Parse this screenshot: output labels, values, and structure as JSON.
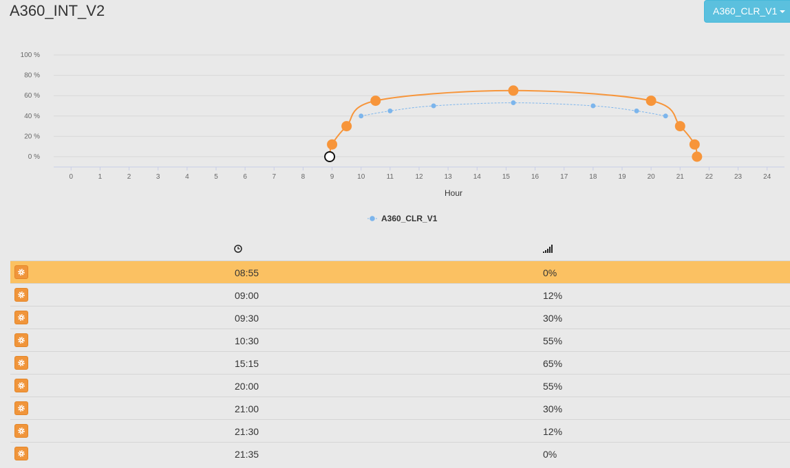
{
  "page": {
    "title": "A360_INT_V2"
  },
  "profile_select": {
    "label": "A360_CLR_V1",
    "icon": "caret-down-icon"
  },
  "chart_data": {
    "type": "line",
    "xlabel": "Hour",
    "x_ticks": [
      "0",
      "1",
      "2",
      "3",
      "4",
      "5",
      "6",
      "7",
      "8",
      "9",
      "10",
      "11",
      "12",
      "13",
      "14",
      "15",
      "16",
      "17",
      "18",
      "19",
      "20",
      "21",
      "22",
      "23",
      "24"
    ],
    "y_ticks": [
      "0 %",
      "20 %",
      "40 %",
      "60 %",
      "80 %",
      "100 %"
    ],
    "ylim": [
      0,
      100
    ],
    "xlim": [
      -0.6,
      24.6
    ],
    "grid": true,
    "legend_position": "bottom-center",
    "series": [
      {
        "name": "",
        "color": "#f7953a",
        "style": "solid",
        "points": [
          [
            9.0,
            12
          ],
          [
            9.5,
            30
          ],
          [
            10.5,
            55
          ],
          [
            15.25,
            65
          ],
          [
            20.0,
            55
          ],
          [
            21.0,
            30
          ],
          [
            21.5,
            12
          ],
          [
            21.583,
            0
          ]
        ],
        "selected_point": [
          8.917,
          0
        ]
      },
      {
        "name": "A360_CLR_V1",
        "color": "#7cb5ec",
        "style": "dashed",
        "points": [
          [
            10,
            40
          ],
          [
            11,
            45
          ],
          [
            12.5,
            50
          ],
          [
            15.25,
            53
          ],
          [
            18,
            50
          ],
          [
            19.5,
            45
          ],
          [
            20.5,
            40
          ]
        ]
      }
    ]
  },
  "table": {
    "headers": {
      "time_icon": "clock-icon",
      "level_icon": "signal-bars-icon"
    },
    "rows": [
      {
        "time": "08:55",
        "level": "0%",
        "selected": true
      },
      {
        "time": "09:00",
        "level": "12%"
      },
      {
        "time": "09:30",
        "level": "30%"
      },
      {
        "time": "10:30",
        "level": "55%"
      },
      {
        "time": "15:15",
        "level": "65%"
      },
      {
        "time": "20:00",
        "level": "55%"
      },
      {
        "time": "21:00",
        "level": "30%"
      },
      {
        "time": "21:30",
        "level": "12%"
      },
      {
        "time": "21:35",
        "level": "0%"
      }
    ],
    "row_icon": "gear-icon"
  },
  "colors": {
    "accent": "#f7953a",
    "selected_row": "#fbc162",
    "dropdown": "#5bc0de"
  }
}
